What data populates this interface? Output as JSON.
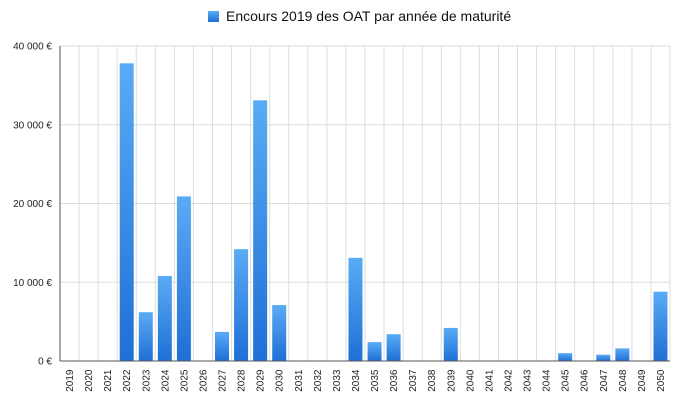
{
  "chart_data": {
    "type": "bar",
    "legend": {
      "label": "Encours 2019 des OAT par année de maturité",
      "placement": "top-center"
    },
    "categories": [
      "2019",
      "2020",
      "2021",
      "2022",
      "2023",
      "2024",
      "2025",
      "2026",
      "2027",
      "2028",
      "2029",
      "2030",
      "2031",
      "2032",
      "2033",
      "2034",
      "2035",
      "2036",
      "2037",
      "2038",
      "2039",
      "2040",
      "2041",
      "2042",
      "2043",
      "2044",
      "2045",
      "2046",
      "2047",
      "2048",
      "2049",
      "2050"
    ],
    "series": [
      {
        "name": "Encours 2019 des OAT par année de maturité",
        "values": [
          0,
          0,
          0,
          37800,
          6200,
          10800,
          20900,
          0,
          3700,
          14200,
          33100,
          7100,
          0,
          0,
          0,
          13100,
          2400,
          3400,
          0,
          0,
          4200,
          0,
          0,
          0,
          0,
          0,
          1000,
          0,
          800,
          1600,
          0,
          8800
        ]
      }
    ],
    "ylim": [
      0,
      40000
    ],
    "yticks": [
      0,
      10000,
      20000,
      30000,
      40000
    ],
    "ytick_labels": [
      "0 €",
      "10 000 €",
      "20 000 €",
      "30 000 €",
      "40 000 €"
    ],
    "grid": "horizontal and vertical",
    "colors": {
      "bar_top": "#5aabf5",
      "bar_bottom": "#1f6fd6",
      "grid": "#dddddd",
      "axis": "#555555"
    }
  }
}
